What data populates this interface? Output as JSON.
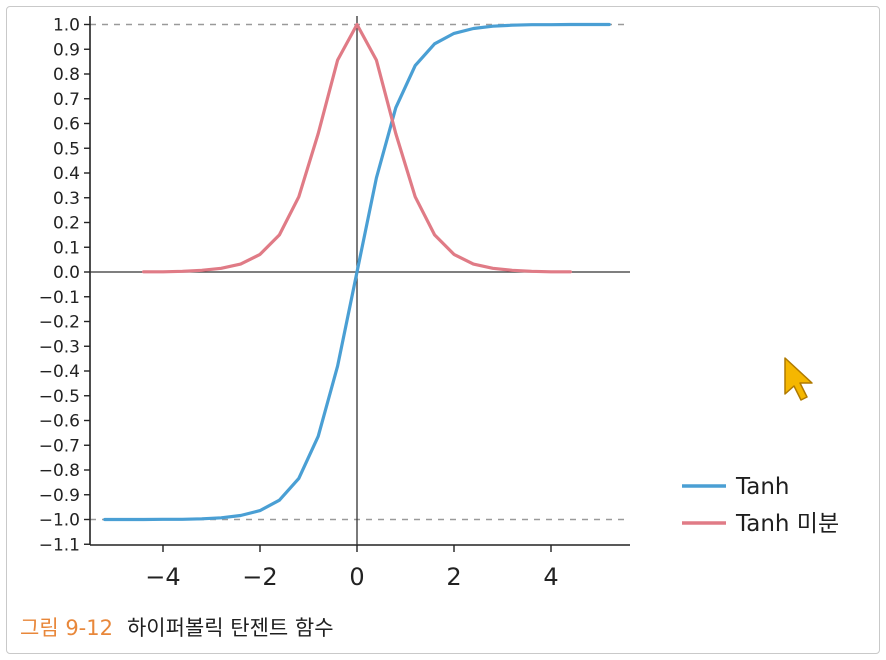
{
  "chart_data": {
    "type": "line",
    "x_ticks": [
      -4,
      -2,
      0,
      2,
      4
    ],
    "y_ticks": [
      1.0,
      0.9,
      0.8,
      0.7,
      0.6,
      0.5,
      0.4,
      0.3,
      0.2,
      0.1,
      0.0,
      -0.1,
      -0.2,
      -0.3,
      -0.4,
      -0.5,
      -0.6,
      -0.7,
      -0.8,
      -0.9,
      -1.0,
      -1.1
    ],
    "x_tick_labels": [
      "−4",
      "−2",
      "0",
      "2",
      "4"
    ],
    "y_tick_labels": [
      "1.0",
      "0.9",
      "0.8",
      "0.7",
      "0.6",
      "0.5",
      "0.4",
      "0.3",
      "0.2",
      "0.1",
      "0.0",
      "−0.1",
      "−0.2",
      "−0.3",
      "−0.4",
      "−0.5",
      "−0.6",
      "−0.7",
      "−0.8",
      "−0.9",
      "−1.0",
      "−1.1"
    ],
    "xlim": [
      -5.6,
      5.8
    ],
    "ylim": [
      -1.1,
      1.0
    ],
    "reference_lines_y": [
      1.0,
      -1.0
    ],
    "grid": false,
    "legend_position": "bottom-right",
    "series": [
      {
        "name": "Tanh",
        "color": "#4a9fd4",
        "x": [
          -5.2,
          -4.8,
          -4.4,
          -4.0,
          -3.6,
          -3.2,
          -2.8,
          -2.4,
          -2.0,
          -1.6,
          -1.2,
          -0.8,
          -0.4,
          0.0,
          0.4,
          0.8,
          1.2,
          1.6,
          2.0,
          2.4,
          2.8,
          3.2,
          3.6,
          4.0,
          4.4,
          4.8,
          5.2
        ],
        "y": [
          -1.0,
          -1.0,
          -1.0,
          -0.999,
          -0.999,
          -0.997,
          -0.993,
          -0.984,
          -0.964,
          -0.922,
          -0.834,
          -0.664,
          -0.38,
          0.0,
          0.38,
          0.664,
          0.834,
          0.922,
          0.964,
          0.984,
          0.993,
          0.997,
          0.999,
          0.999,
          1.0,
          1.0,
          1.0
        ]
      },
      {
        "name": "Tanh 미분",
        "color": "#e07b86",
        "x": [
          -4.4,
          -4.0,
          -3.6,
          -3.2,
          -2.8,
          -2.4,
          -2.0,
          -1.6,
          -1.2,
          -0.8,
          -0.4,
          0.0,
          0.4,
          0.8,
          1.2,
          1.6,
          2.0,
          2.4,
          2.8,
          3.2,
          3.6,
          4.0,
          4.4
        ],
        "y": [
          0.001,
          0.001,
          0.003,
          0.007,
          0.015,
          0.032,
          0.071,
          0.15,
          0.304,
          0.559,
          0.856,
          1.0,
          0.856,
          0.559,
          0.304,
          0.15,
          0.071,
          0.032,
          0.015,
          0.007,
          0.003,
          0.001,
          0.001
        ]
      }
    ]
  },
  "caption": {
    "figure_label": "그림 9-12",
    "text": "하이퍼볼릭 탄젠트 함수"
  },
  "cursor": {
    "icon": "mouse-pointer-icon",
    "color": "#f5b700"
  }
}
